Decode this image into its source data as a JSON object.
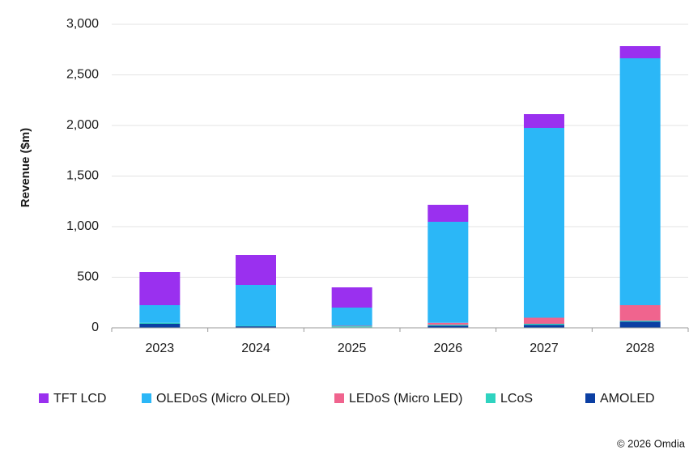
{
  "chart_data": {
    "type": "stacked_bar",
    "y_label": "Revenue ($m)",
    "categories": [
      "2023",
      "2024",
      "2025",
      "2026",
      "2027",
      "2028"
    ],
    "series": [
      {
        "name": "TFT LCD",
        "color": "#9a30ef",
        "values": [
          328,
          296,
          200,
          168,
          136,
          120
        ]
      },
      {
        "name": "OLEDoS (Micro OLED)",
        "color": "#2bb7f7",
        "values": [
          174,
          404,
          180,
          998,
          1876,
          2440
        ]
      },
      {
        "name": "LEDoS (Micro LED)",
        "color": "#f0648e",
        "values": [
          0,
          0,
          5,
          20,
          60,
          154
        ]
      },
      {
        "name": "LCoS",
        "color": "#2fd3c0",
        "values": [
          10,
          5,
          10,
          10,
          10,
          10
        ]
      },
      {
        "name": "AMOLED",
        "color": "#0b3fa3",
        "values": [
          40,
          15,
          5,
          20,
          30,
          60
        ]
      }
    ],
    "ylim": [
      0,
      3000
    ],
    "yticks": [
      0,
      500,
      {
        "value": 1000,
        "label": "1,000"
      },
      {
        "value": 1500,
        "label": "1,500"
      },
      {
        "value": 2000,
        "label": "2,000"
      },
      {
        "value": 2500,
        "label": "2,500"
      },
      {
        "value": 3000,
        "label": "3,000"
      }
    ],
    "grid": true,
    "legend": "bottom",
    "footnote": "© 2026 Omdia"
  }
}
